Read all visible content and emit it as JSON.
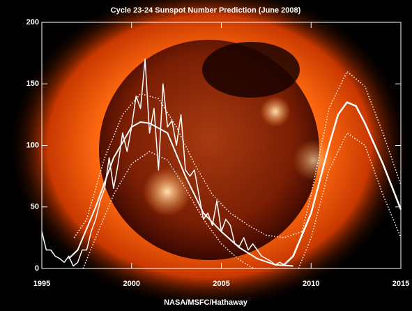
{
  "chart_data": {
    "type": "line",
    "title": "Cycle 23-24 Sunspot Number Prediction (June 2008)",
    "credit": "NASA/MSFC/Hathaway",
    "xlim": [
      1995,
      2015
    ],
    "xticks": [
      1995,
      2000,
      2005,
      2010,
      2015
    ],
    "ylim": [
      0,
      200
    ],
    "yticks": [
      0,
      50,
      100,
      150,
      200
    ],
    "series": [
      {
        "color": "#ffffff",
        "line_style": "solid",
        "width": 1.5,
        "x": [
          1995.0,
          1995.25,
          1995.5,
          1995.75,
          1996.0,
          1996.25,
          1996.5,
          1996.75,
          1997.0,
          1997.25,
          1997.5,
          1997.75,
          1998.0,
          1998.25,
          1998.5,
          1998.75,
          1999.0,
          1999.25,
          1999.5,
          1999.75,
          2000.0,
          2000.25,
          2000.5,
          2000.75,
          2001.0,
          2001.25,
          2001.5,
          2001.75,
          2002.0,
          2002.25,
          2002.5,
          2002.75,
          2003.0,
          2003.25,
          2003.5,
          2003.75,
          2004.0,
          2004.25,
          2004.5,
          2004.75,
          2005.0,
          2005.25,
          2005.5,
          2005.75,
          2006.0,
          2006.25,
          2006.5,
          2006.75,
          2007.0,
          2007.25,
          2007.5,
          2007.75,
          2008.0,
          2008.25,
          2008.5
        ],
        "values": [
          30,
          15,
          15,
          10,
          8,
          5,
          10,
          2,
          5,
          15,
          15,
          30,
          40,
          55,
          65,
          90,
          65,
          85,
          110,
          95,
          115,
          140,
          130,
          170,
          110,
          130,
          80,
          150,
          115,
          120,
          100,
          125,
          80,
          75,
          80,
          60,
          40,
          45,
          35,
          55,
          30,
          40,
          35,
          20,
          18,
          25,
          15,
          20,
          15,
          10,
          8,
          6,
          3,
          5,
          3
        ]
      },
      {
        "color": "#ffffff",
        "line_style": "solid",
        "width": 2,
        "x": [
          1996.5,
          1997,
          1998,
          1999,
          2000,
          2000.5,
          2001,
          2002,
          2003,
          2004,
          2005,
          2006,
          2007,
          2008,
          2009
        ],
        "values": [
          8,
          15,
          50,
          90,
          115,
          119,
          118,
          110,
          75,
          45,
          30,
          17,
          8,
          3,
          2
        ]
      },
      {
        "color": "#ffffff",
        "line_style": "solid",
        "width": 2.5,
        "x": [
          2008.5,
          2009,
          2010,
          2011,
          2011.5,
          2012,
          2012.5,
          2013,
          2014,
          2015
        ],
        "values": [
          3,
          10,
          45,
          100,
          125,
          135,
          132,
          118,
          85,
          48
        ]
      },
      {
        "color": "#ffffff",
        "line_style": "dotted",
        "width": 1.5,
        "x": [
          1996.8,
          1997.5,
          1998.5,
          1999.5,
          2000.5,
          2001.5,
          2002.5,
          2003.5,
          2004.5,
          2005.5,
          2006.5,
          2007.5,
          2008.5,
          2009.5
        ],
        "values": [
          25,
          40,
          90,
          125,
          142,
          138,
          115,
          85,
          60,
          45,
          35,
          27,
          25,
          30
        ]
      },
      {
        "color": "#ffffff",
        "line_style": "dotted",
        "width": 1.5,
        "x": [
          1997.3,
          1998,
          1999,
          2000,
          2001,
          2002,
          2003,
          2004,
          2005,
          2006,
          2006.8
        ],
        "values": [
          0,
          25,
          60,
          85,
          95,
          88,
          65,
          40,
          20,
          7,
          0
        ]
      },
      {
        "color": "#ffffff",
        "line_style": "dotted",
        "width": 1.5,
        "x": [
          2009.5,
          2010,
          2011,
          2012,
          2013,
          2014,
          2015
        ],
        "values": [
          30,
          60,
          130,
          160,
          148,
          110,
          68
        ]
      },
      {
        "color": "#ffffff",
        "line_style": "dotted",
        "width": 1.5,
        "x": [
          2009.3,
          2010,
          2011,
          2012,
          2013,
          2014,
          2015
        ],
        "values": [
          0,
          25,
          80,
          110,
          100,
          60,
          25
        ]
      }
    ]
  }
}
